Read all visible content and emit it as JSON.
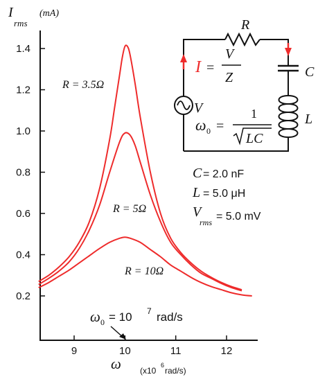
{
  "chart_data": {
    "type": "line",
    "ylabel": {
      "main": "I",
      "sub": "rms",
      "unit": "(mA)"
    },
    "xlabel": {
      "main": "ω",
      "unit_prefix": "(x10",
      "unit_exp": "6",
      "unit_suffix": "rad/s)"
    },
    "xticks": [
      9,
      10,
      11,
      12
    ],
    "yticks": [
      "0.2",
      "0.4",
      "0.6",
      "0.8",
      "1.0",
      "1.2",
      "1.4"
    ],
    "xlim": [
      8.3,
      12.6
    ],
    "ylim": [
      0.12,
      1.45
    ],
    "grid": false,
    "series": [
      {
        "name": "R = 3.5Ω",
        "color": "#ee2b2b",
        "x": [
          8.3,
          8.5,
          8.7,
          8.9,
          9.1,
          9.3,
          9.5,
          9.7,
          9.8,
          9.9,
          9.95,
          10.0,
          10.05,
          10.1,
          10.2,
          10.3,
          10.5,
          10.7,
          10.9,
          11.1,
          11.3,
          11.5,
          11.7,
          11.9,
          12.1,
          12.3
        ],
        "y": [
          0.27,
          0.3,
          0.34,
          0.39,
          0.46,
          0.56,
          0.72,
          0.96,
          1.12,
          1.28,
          1.36,
          1.41,
          1.41,
          1.37,
          1.23,
          1.07,
          0.8,
          0.6,
          0.48,
          0.41,
          0.36,
          0.32,
          0.29,
          0.265,
          0.245,
          0.23
        ]
      },
      {
        "name": "R = 5Ω",
        "color": "#ee2b2b",
        "x": [
          8.3,
          8.5,
          8.7,
          8.9,
          9.1,
          9.3,
          9.5,
          9.7,
          9.9,
          10.0,
          10.1,
          10.2,
          10.3,
          10.5,
          10.7,
          10.9,
          11.1,
          11.3,
          11.5,
          11.7,
          11.9,
          12.1,
          12.3
        ],
        "y": [
          0.255,
          0.285,
          0.32,
          0.365,
          0.43,
          0.52,
          0.64,
          0.8,
          0.95,
          0.99,
          0.98,
          0.93,
          0.85,
          0.69,
          0.56,
          0.46,
          0.4,
          0.35,
          0.31,
          0.285,
          0.26,
          0.24,
          0.225
        ]
      },
      {
        "name": "R = 10Ω",
        "color": "#ee2b2b",
        "x": [
          8.3,
          8.5,
          8.7,
          8.9,
          9.1,
          9.3,
          9.5,
          9.7,
          9.9,
          10.0,
          10.1,
          10.3,
          10.5,
          10.7,
          10.9,
          11.1,
          11.3,
          11.5,
          11.7,
          11.9,
          12.1,
          12.3,
          12.5
        ],
        "y": [
          0.24,
          0.265,
          0.295,
          0.325,
          0.36,
          0.395,
          0.43,
          0.46,
          0.48,
          0.485,
          0.48,
          0.46,
          0.425,
          0.39,
          0.35,
          0.32,
          0.29,
          0.265,
          0.245,
          0.23,
          0.215,
          0.205,
          0.2
        ]
      }
    ],
    "annotation": {
      "omega": "ω",
      "sub": "0",
      "text": "= 10",
      "exp": "7",
      "unit": "rad/s"
    }
  },
  "circuit": {
    "R": "R",
    "C": "C",
    "L": "L",
    "V": "V",
    "I": "I",
    "eq_current": {
      "lhs": "= ",
      "num": "V",
      "den": "Z"
    },
    "eq_omega": {
      "omega": "ω",
      "sub": "0",
      "eq": "=",
      "num": "1",
      "den": "LC"
    },
    "params": {
      "C": {
        "sym": "C",
        "val": "= 2.0 nF"
      },
      "L": {
        "sym": "L",
        "val": "= 5.0 μH"
      },
      "V": {
        "sym": "V",
        "sub": "rms",
        "val": "= 5.0 mV"
      }
    }
  },
  "colors": {
    "curve": "#ee2b2b",
    "current": "#ee2b2b",
    "ink": "#111111"
  }
}
